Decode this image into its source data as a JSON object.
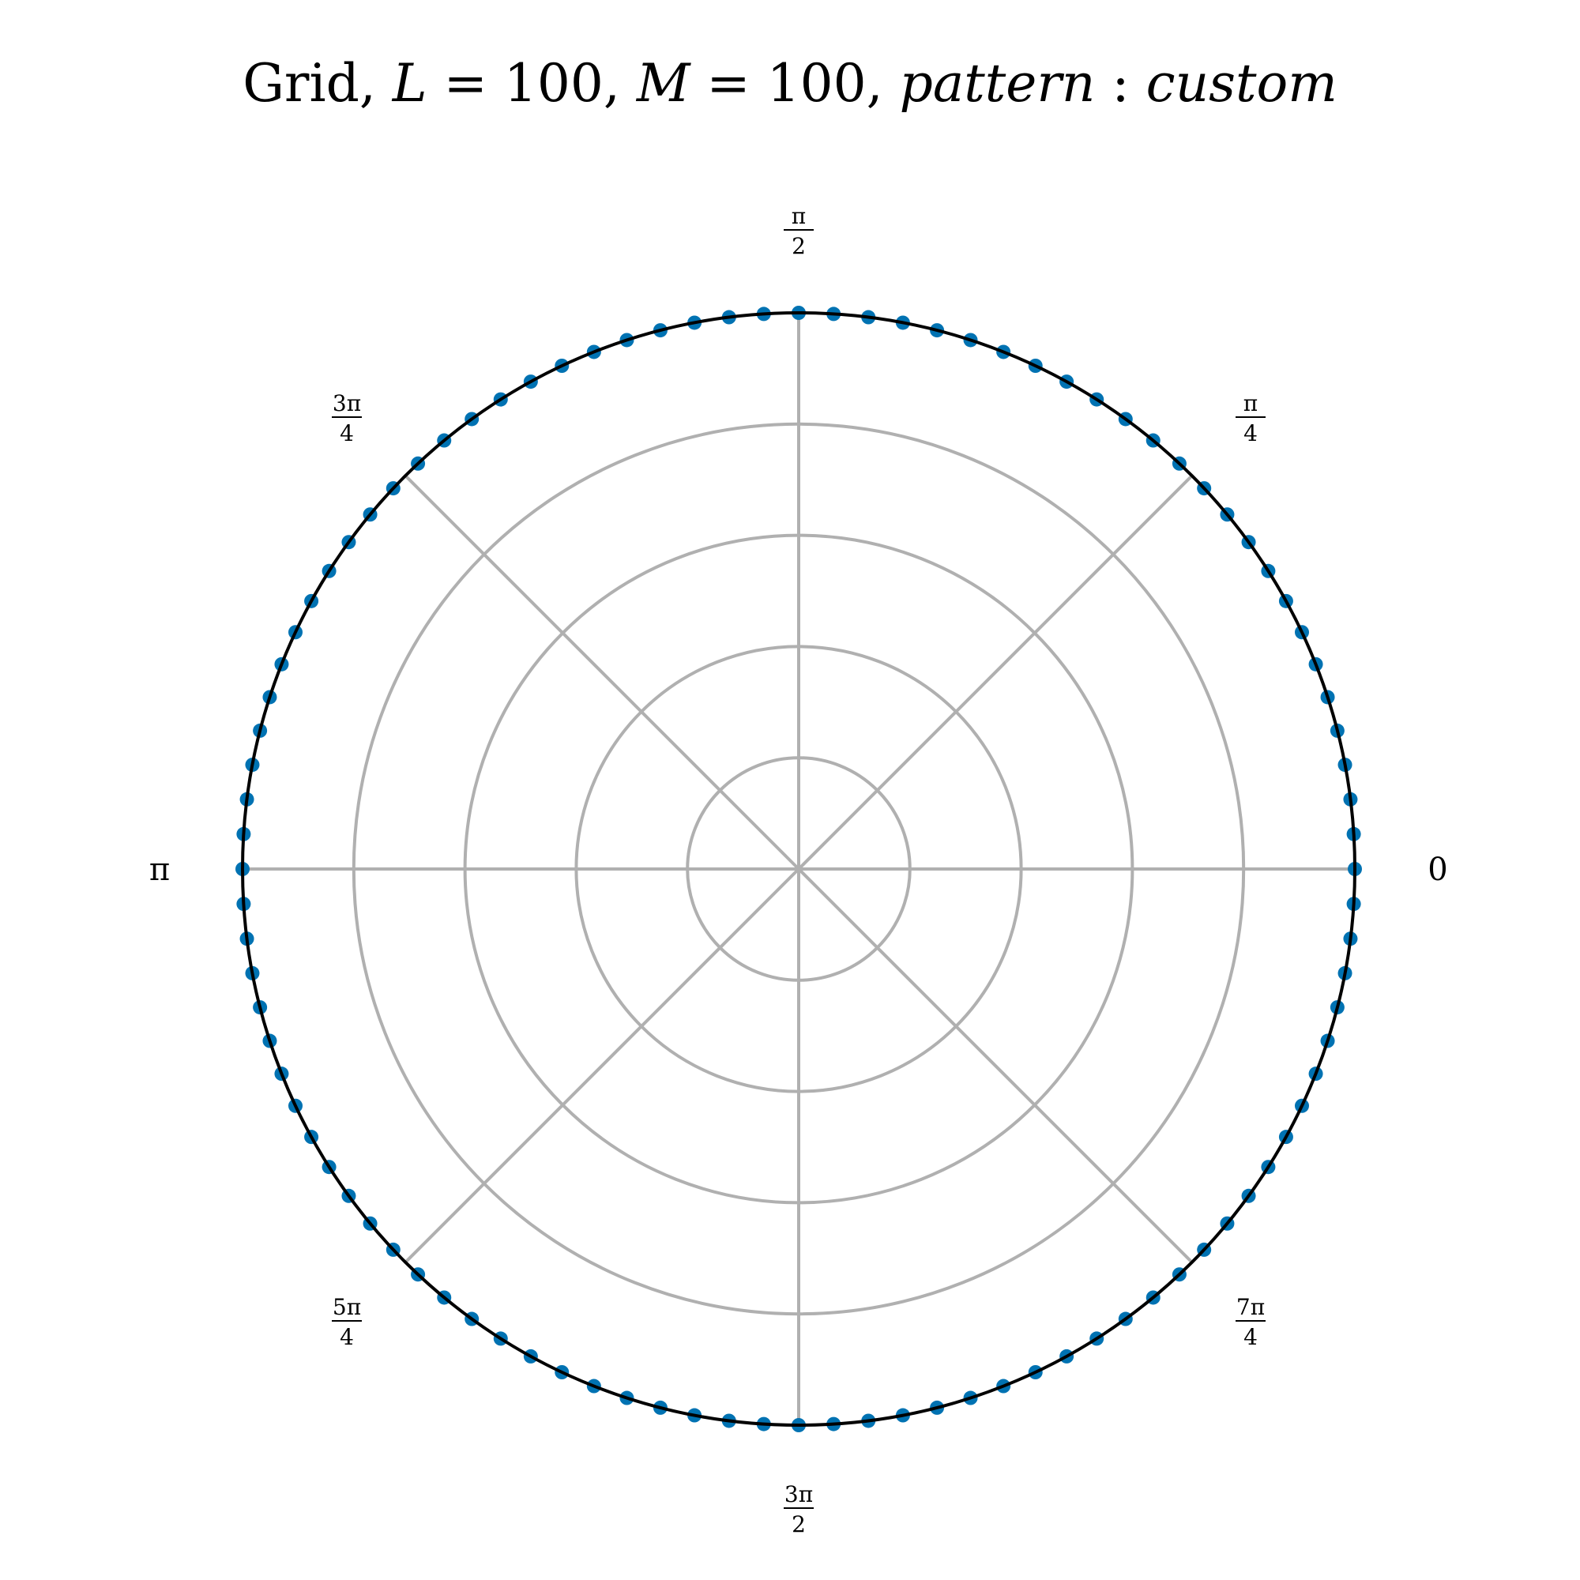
{
  "chart_data": {
    "type": "scatter",
    "projection": "polar",
    "title": {
      "prefix": "Grid, ",
      "L_var": "L",
      "eq": " = ",
      "L_val": "100",
      "sep": ", ",
      "M_var": "M",
      "M_val": "100",
      "comma": ", ",
      "pattern_word": "pattern",
      "colon": " : ",
      "pattern_value": "custom"
    },
    "angular_ticks": [
      {
        "angle_deg": 0,
        "kind": "plain",
        "text": "0"
      },
      {
        "angle_deg": 45,
        "kind": "frac",
        "num": "π",
        "den": "4"
      },
      {
        "angle_deg": 90,
        "kind": "frac",
        "num": "π",
        "den": "2"
      },
      {
        "angle_deg": 135,
        "kind": "frac",
        "num": "3π",
        "den": "4"
      },
      {
        "angle_deg": 180,
        "kind": "plain",
        "text": "π"
      },
      {
        "angle_deg": 225,
        "kind": "frac",
        "num": "5π",
        "den": "4"
      },
      {
        "angle_deg": 270,
        "kind": "frac",
        "num": "3π",
        "den": "2"
      },
      {
        "angle_deg": 315,
        "kind": "frac",
        "num": "7π",
        "den": "4"
      }
    ],
    "radial_gridlines": [
      0.2,
      0.4,
      0.6,
      0.8
    ],
    "rlim": [
      0,
      1
    ],
    "grid": true,
    "series": [
      {
        "point_count": 100,
        "radius": 1.0,
        "theta_start_deg": 0,
        "theta_step_deg": 3.6
      }
    ],
    "colors": {
      "points": "#0072B2",
      "grid": "#b0b0b0",
      "boundary": "#000000"
    }
  }
}
